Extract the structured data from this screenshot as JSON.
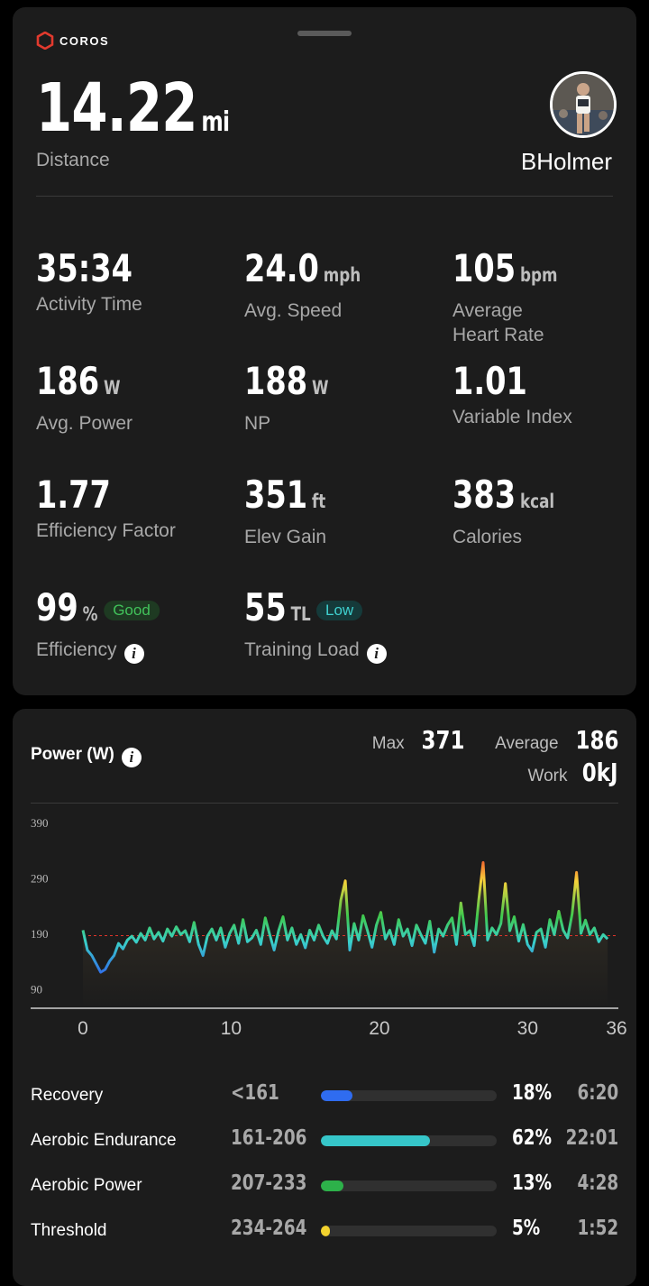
{
  "header": {
    "brand": "COROS"
  },
  "summary": {
    "distance_value": "14.22",
    "distance_unit": "mi",
    "distance_label": "Distance",
    "username": "BHolmer"
  },
  "metrics": [
    {
      "value": "35:34",
      "unit": "",
      "label": "Activity Time"
    },
    {
      "value": "24.0",
      "unit": "mph",
      "label": "Avg. Speed"
    },
    {
      "value": "105",
      "unit": "bpm",
      "label": "Average\nHeart Rate"
    },
    {
      "value": "186",
      "unit": "W",
      "label": "Avg. Power"
    },
    {
      "value": "188",
      "unit": "W",
      "label": "NP"
    },
    {
      "value": "1.01",
      "unit": "",
      "label": "Variable Index"
    },
    {
      "value": "1.77",
      "unit": "",
      "label": "Efficiency Factor"
    },
    {
      "value": "351",
      "unit": "ft",
      "label": "Elev Gain"
    },
    {
      "value": "383",
      "unit": "kcal",
      "label": "Calories"
    }
  ],
  "efficiency": {
    "value": "99",
    "unit": "%",
    "badge": "Good",
    "label": "Efficiency"
  },
  "training_load": {
    "value": "55",
    "unit": "TL",
    "badge": "Low",
    "label": "Training Load"
  },
  "power": {
    "title": "Power (W)",
    "max_label": "Max",
    "max_value": "371",
    "avg_label": "Average",
    "avg_value": "186",
    "work_label": "Work",
    "work_value": "0kJ"
  },
  "chart_data": {
    "type": "line",
    "title": "",
    "xlabel": "",
    "ylabel": "",
    "xlim": [
      0,
      36
    ],
    "ylim": [
      55,
      400
    ],
    "y_ticks": [
      90,
      190,
      290,
      390
    ],
    "x_ticks": [
      0,
      10,
      20,
      30,
      36
    ],
    "average_line": 186,
    "series": [
      {
        "x": [
          0,
          0.3,
          0.6,
          0.9,
          1.2,
          1.5,
          1.8,
          2.1,
          2.4,
          2.7,
          3,
          3.3,
          3.6,
          3.9,
          4.2,
          4.5,
          4.8,
          5.1,
          5.4,
          5.7,
          6,
          6.3,
          6.6,
          6.9,
          7.2,
          7.5,
          7.8,
          8.1,
          8.4,
          8.7,
          9,
          9.3,
          9.6,
          9.9,
          10.2,
          10.5,
          10.8,
          11.1,
          11.4,
          11.7,
          12,
          12.3,
          12.6,
          12.9,
          13.2,
          13.5,
          13.8,
          14.1,
          14.4,
          14.7,
          15,
          15.3,
          15.6,
          15.9,
          16.2,
          16.5,
          16.8,
          17.1,
          17.4,
          17.7,
          18,
          18.3,
          18.6,
          18.9,
          19.2,
          19.5,
          19.8,
          20.1,
          20.4,
          20.7,
          21,
          21.3,
          21.6,
          21.9,
          22.2,
          22.5,
          22.8,
          23.1,
          23.4,
          23.7,
          24,
          24.3,
          24.6,
          24.9,
          25.2,
          25.5,
          25.8,
          26.1,
          26.4,
          26.7,
          27,
          27.3,
          27.6,
          27.9,
          28.2,
          28.5,
          28.8,
          29.1,
          29.4,
          29.7,
          30,
          30.3,
          30.6,
          30.9,
          31.2,
          31.5,
          31.8,
          32.1,
          32.4,
          32.7,
          33,
          33.3,
          33.6,
          33.9,
          34.2,
          34.5,
          34.8,
          35.1,
          35.4
        ],
        "values": [
          196,
          160,
          150,
          135,
          120,
          125,
          140,
          150,
          172,
          162,
          178,
          185,
          174,
          190,
          178,
          200,
          180,
          192,
          176,
          198,
          185,
          202,
          188,
          195,
          175,
          210,
          170,
          150,
          185,
          198,
          178,
          200,
          165,
          190,
          205,
          172,
          215,
          175,
          182,
          196,
          170,
          218,
          188,
          160,
          195,
          220,
          178,
          200,
          170,
          188,
          164,
          196,
          178,
          205,
          185,
          172,
          195,
          180,
          250,
          285,
          160,
          208,
          178,
          222,
          195,
          165,
          205,
          228,
          180,
          196,
          170,
          215,
          185,
          198,
          168,
          205,
          188,
          172,
          212,
          156,
          198,
          185,
          205,
          218,
          170,
          245,
          188,
          195,
          168,
          250,
          318,
          178,
          200,
          188,
          208,
          280,
          195,
          220,
          176,
          206,
          170,
          158,
          192,
          198,
          165,
          215,
          188,
          230,
          196,
          182,
          225,
          300,
          190,
          214,
          188,
          200,
          175,
          188,
          180
        ]
      }
    ]
  },
  "zones": [
    {
      "name": "Recovery",
      "range": "<161",
      "pct": "18%",
      "time": "6:20",
      "fraction": 0.18,
      "color": "#2f6cf0"
    },
    {
      "name": "Aerobic Endurance",
      "range": "161-206",
      "pct": "62%",
      "time": "22:01",
      "fraction": 0.62,
      "color": "#36c6c9"
    },
    {
      "name": "Aerobic Power",
      "range": "207-233",
      "pct": "13%",
      "time": "4:28",
      "fraction": 0.13,
      "color": "#2db14a"
    },
    {
      "name": "Threshold",
      "range": "234-264",
      "pct": "5%",
      "time": "1:52",
      "fraction": 0.05,
      "color": "#f2d22e"
    }
  ]
}
